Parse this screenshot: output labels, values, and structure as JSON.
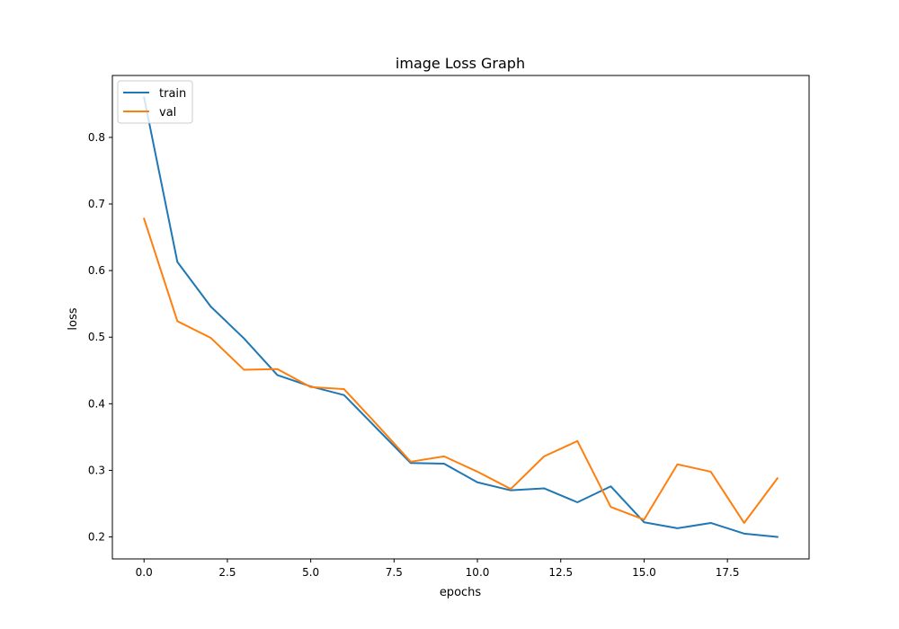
{
  "chart_data": {
    "type": "line",
    "title": "image Loss Graph",
    "xlabel": "epochs",
    "ylabel": "loss",
    "xlim": [
      -0.95,
      19.95
    ],
    "ylim": [
      0.167,
      0.893
    ],
    "xticks": [
      0.0,
      2.5,
      5.0,
      7.5,
      10.0,
      12.5,
      15.0,
      17.5
    ],
    "xtick_labels": [
      "0.0",
      "2.5",
      "5.0",
      "7.5",
      "10.0",
      "12.5",
      "15.0",
      "17.5"
    ],
    "yticks": [
      0.2,
      0.3,
      0.4,
      0.5,
      0.6,
      0.7,
      0.8
    ],
    "ytick_labels": [
      "0.2",
      "0.3",
      "0.4",
      "0.5",
      "0.6",
      "0.7",
      "0.8"
    ],
    "grid": false,
    "legend_position": "upper left",
    "x": [
      0,
      1,
      2,
      3,
      4,
      5,
      6,
      7,
      8,
      9,
      10,
      11,
      12,
      13,
      14,
      15,
      16,
      17,
      18,
      19
    ],
    "series": [
      {
        "name": "train",
        "color": "#1f77b4",
        "values": [
          0.86,
          0.613,
          0.546,
          0.498,
          0.443,
          0.426,
          0.413,
          0.362,
          0.311,
          0.31,
          0.282,
          0.27,
          0.273,
          0.252,
          0.276,
          0.222,
          0.213,
          0.221,
          0.205,
          0.2
        ]
      },
      {
        "name": "val",
        "color": "#ff7f0e",
        "values": [
          0.678,
          0.524,
          0.499,
          0.451,
          0.452,
          0.425,
          0.422,
          0.368,
          0.313,
          0.321,
          0.298,
          0.272,
          0.321,
          0.344,
          0.245,
          0.226,
          0.309,
          0.298,
          0.221,
          0.288
        ]
      }
    ]
  }
}
